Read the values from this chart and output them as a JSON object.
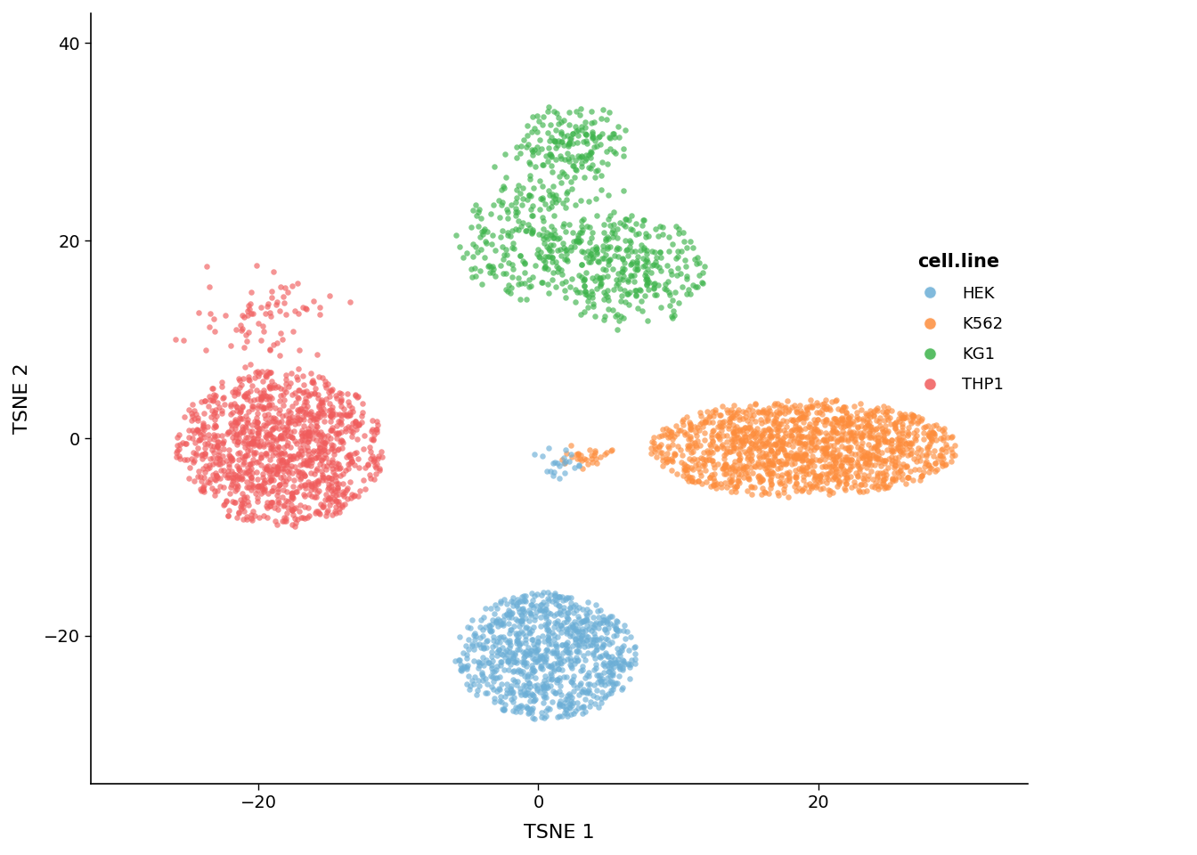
{
  "colors": {
    "HEK": "#6baed6",
    "K562": "#fd8d3c",
    "KG1": "#3cb34a",
    "THP1": "#f05c5c"
  },
  "legend_title": "cell.line",
  "xlabel": "TSNE 1",
  "ylabel": "TSNE 2",
  "xlim": [
    -32,
    35
  ],
  "ylim": [
    -35,
    43
  ],
  "xticks": [
    -20,
    0,
    20
  ],
  "yticks": [
    -20,
    0,
    20,
    40
  ],
  "alpha": 0.65,
  "point_size": 22,
  "background_color": "#ffffff",
  "font_family": "DejaVu Sans",
  "font_size": 14,
  "legend_font_size": 13,
  "legend_title_font_size": 15
}
